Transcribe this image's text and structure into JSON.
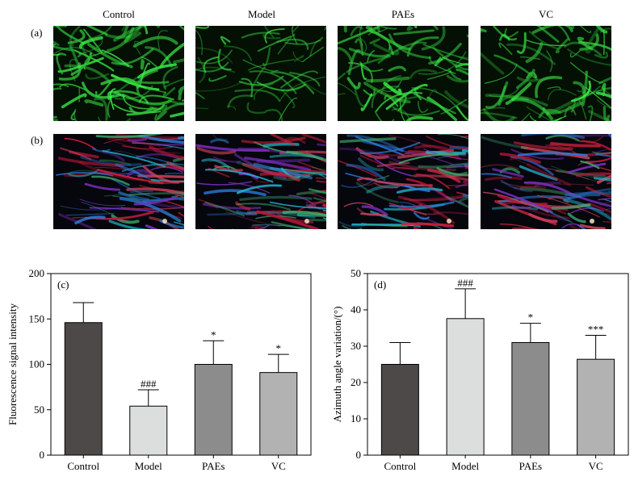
{
  "columns": [
    "Control",
    "Model",
    "PAEs",
    "VC"
  ],
  "row_labels": [
    "(a)",
    "(b)"
  ],
  "image_rows": [
    {
      "row": "(a)",
      "stain": "green-fiber",
      "panels": [
        {
          "group": "Control",
          "density": 1.0
        },
        {
          "group": "Model",
          "density": 0.45
        },
        {
          "group": "PAEs",
          "density": 0.85
        },
        {
          "group": "VC",
          "density": 0.8
        }
      ]
    },
    {
      "row": "(b)",
      "stain": "multicolor",
      "panels": [
        {
          "group": "Control"
        },
        {
          "group": "Model"
        },
        {
          "group": "PAEs"
        },
        {
          "group": "VC"
        }
      ]
    }
  ],
  "chart_data": [
    {
      "type": "bar",
      "panel_label": "(c)",
      "title": "",
      "xlabel": "",
      "ylabel": "Fluorescence signal intensity",
      "categories": [
        "Control",
        "Model",
        "PAEs",
        "VC"
      ],
      "values": [
        146,
        54,
        100,
        91
      ],
      "errors": [
        22,
        18,
        26,
        20
      ],
      "annotations": [
        "",
        "###",
        "*",
        "*"
      ],
      "bar_colors": [
        "#4d4949",
        "#dcdedd",
        "#8c8c8c",
        "#b2b2b2"
      ],
      "ylim": [
        0,
        200
      ],
      "yticks": [
        "0",
        "50",
        "100",
        "150",
        "200"
      ],
      "grid": false
    },
    {
      "type": "bar",
      "panel_label": "(d)",
      "title": "",
      "xlabel": "",
      "ylabel": "Azimuth angle variation/(°)",
      "categories": [
        "Control",
        "Model",
        "PAEs",
        "VC"
      ],
      "values": [
        25,
        37.6,
        31,
        26.4
      ],
      "errors": [
        6,
        8.2,
        5.3,
        6.6
      ],
      "annotations": [
        "",
        "###",
        "*",
        "***"
      ],
      "bar_colors": [
        "#4d4949",
        "#dcdedd",
        "#8c8c8c",
        "#b2b2b2"
      ],
      "ylim": [
        0,
        50
      ],
      "yticks": [
        "0",
        "10",
        "20",
        "30",
        "40",
        "50"
      ],
      "grid": false
    }
  ]
}
